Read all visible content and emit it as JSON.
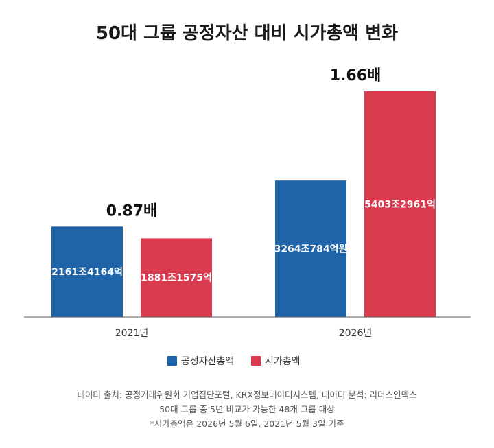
{
  "chart_data": {
    "type": "bar",
    "title": "50대 그룹 공정자산 대비 시가총액 변화",
    "categories": [
      "2021년",
      "2026년"
    ],
    "unit": "조원",
    "series": [
      {
        "name": "공정자산총액",
        "color": "#1f63a8",
        "values": [
          2161.4164,
          3264.0784
        ],
        "value_labels": [
          "2161조4164억",
          "3264조784억원"
        ]
      },
      {
        "name": "시가총액",
        "color": "#d93a4e",
        "values": [
          1881.1575,
          5403.2961
        ],
        "value_labels": [
          "1881조1575억",
          "5403조2961억"
        ]
      }
    ],
    "ratio_labels": [
      "0.87배",
      "1.66배"
    ],
    "ylim": [
      0,
      5450
    ],
    "legend_position": "bottom-center",
    "grid": false
  },
  "footnotes": [
    "데이터 출처: 공정거래위원회 기업집단포털, KRX정보데이터시스템, 데이터 분석: 리더스인덱스",
    "50대 그룹 중 5년 비교가 가능한 48개 그룹 대상",
    "*시가총액은 2026년 5월 6일, 2021년 5월 3일 기준"
  ]
}
